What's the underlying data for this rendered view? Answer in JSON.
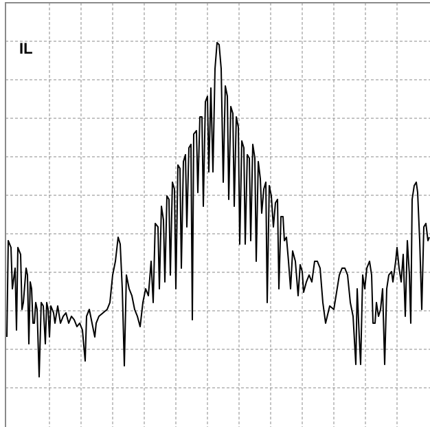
{
  "chart_data": {
    "type": "line",
    "title": "IL",
    "xlim": [
      -64,
      554
    ],
    "ylim": [
      0,
      616
    ],
    "xticks": [
      0,
      46,
      92,
      138,
      184,
      230,
      276,
      322,
      368,
      414,
      460,
      506
    ],
    "yticks": [
      56,
      112,
      168,
      224,
      280,
      336,
      392,
      448,
      504,
      560
    ],
    "grid": true,
    "x": [
      -62,
      -60,
      -56,
      -54,
      -50,
      -48,
      -46,
      -42,
      -40,
      -38,
      -34,
      -32,
      -30,
      -28,
      -26,
      -24,
      -22,
      -20,
      -18,
      -15,
      -12,
      -9,
      -6,
      -4,
      -2,
      0,
      2,
      6,
      8,
      12,
      16,
      20,
      24,
      28,
      32,
      36,
      40,
      44,
      48,
      52,
      54,
      58,
      62,
      66,
      68,
      72,
      78,
      84,
      88,
      92,
      96,
      100,
      103,
      106,
      109,
      112,
      116,
      120,
      124,
      128,
      132,
      136,
      140,
      144,
      148,
      151,
      154,
      158,
      160,
      163,
      166,
      168,
      171,
      174,
      176,
      179,
      182,
      184,
      187,
      190,
      192,
      195,
      198,
      200,
      203,
      206,
      208,
      210,
      214,
      216,
      219,
      222,
      224,
      227,
      230,
      232,
      235,
      238,
      241,
      244,
      247,
      250,
      253,
      256,
      259,
      261,
      264,
      267,
      269,
      272,
      275,
      277,
      280,
      283,
      285,
      288,
      291,
      293,
      296,
      299,
      301,
      304,
      307,
      309,
      312,
      315,
      317,
      320,
      323,
      326,
      329,
      332,
      334,
      337,
      340,
      342,
      345,
      348,
      351,
      354,
      358,
      362,
      365,
      368,
      370,
      374,
      378,
      382,
      386,
      390,
      394,
      398,
      402,
      408,
      414,
      418,
      422,
      426,
      430,
      434,
      438,
      442,
      446,
      448,
      451,
      453,
      456,
      459,
      462,
      466,
      469,
      471,
      474,
      476,
      479,
      482,
      485,
      488,
      491,
      494,
      498,
      500,
      504,
      506,
      509,
      512,
      515,
      518,
      521,
      524,
      526,
      528,
      531,
      534,
      536,
      539,
      542,
      545,
      548,
      551,
      553
    ],
    "series": [
      {
        "color": "#000000",
        "values": [
          130,
          270,
          260,
          200,
          230,
          140,
          260,
          250,
          170,
          180,
          230,
          220,
          120,
          210,
          200,
          150,
          150,
          180,
          170,
          72,
          180,
          175,
          120,
          180,
          170,
          130,
          175,
          165,
          150,
          175,
          150,
          160,
          165,
          150,
          160,
          155,
          145,
          150,
          140,
          95,
          160,
          170,
          150,
          130,
          150,
          160,
          165,
          170,
          180,
          220,
          240,
          275,
          265,
          200,
          88,
          220,
          200,
          190,
          170,
          160,
          145,
          180,
          200,
          190,
          240,
          180,
          295,
          290,
          200,
          320,
          300,
          210,
          335,
          330,
          220,
          355,
          345,
          200,
          380,
          375,
          230,
          385,
          395,
          290,
          405,
          410,
          155,
          425,
          430,
          340,
          450,
          450,
          320,
          472,
          480,
          370,
          492,
          370,
          520,
          558,
          555,
          520,
          355,
          495,
          480,
          330,
          465,
          455,
          320,
          450,
          435,
          265,
          415,
          405,
          265,
          395,
          390,
          270,
          410,
          390,
          240,
          385,
          360,
          310,
          345,
          355,
          180,
          350,
          335,
          290,
          325,
          330,
          200,
          305,
          305,
          270,
          275,
          240,
          200,
          255,
          240,
          190,
          235,
          225,
          195,
          210,
          220,
          210,
          240,
          240,
          230,
          180,
          150,
          175,
          170,
          195,
          220,
          230,
          230,
          220,
          180,
          160,
          90,
          200,
          130,
          90,
          220,
          200,
          230,
          240,
          220,
          150,
          150,
          180,
          160,
          170,
          200,
          90,
          200,
          220,
          225,
          210,
          240,
          260,
          230,
          210,
          250,
          160,
          270,
          220,
          150,
          330,
          350,
          355,
          340,
          270,
          170,
          290,
          295,
          270,
          275
        ]
      }
    ]
  }
}
